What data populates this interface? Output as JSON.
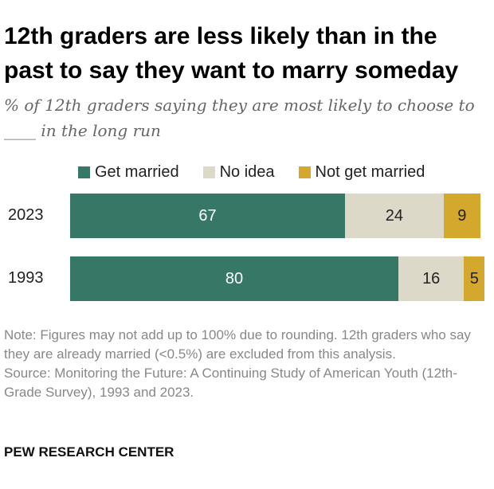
{
  "chart_data": {
    "type": "bar",
    "orientation": "horizontal",
    "stacked": true,
    "title": "12th graders are less likely than in the past to say they want to marry someday",
    "subtitle": "% of 12th graders saying they are most likely to choose to ____ in the long run",
    "categories": [
      "2023",
      "1993"
    ],
    "series": [
      {
        "name": "Get married",
        "values": [
          67,
          80
        ],
        "color": "#377766"
      },
      {
        "name": "No idea",
        "values": [
          24,
          16
        ],
        "color": "#dcd9c8"
      },
      {
        "name": "Not get married",
        "values": [
          9,
          5
        ],
        "color": "#d4a72d"
      }
    ],
    "legend_position": "top",
    "grid": false,
    "xlim": [
      0,
      100
    ]
  },
  "note": "Note: Figures may not add up to 100% due to rounding. 12th graders who say they are already married (<0.5%) are excluded from this analysis.",
  "source": "Source: Monitoring the Future: A Continuing Study of American Youth (12th-Grade Survey), 1993 and 2023.",
  "brand": "PEW RESEARCH CENTER"
}
